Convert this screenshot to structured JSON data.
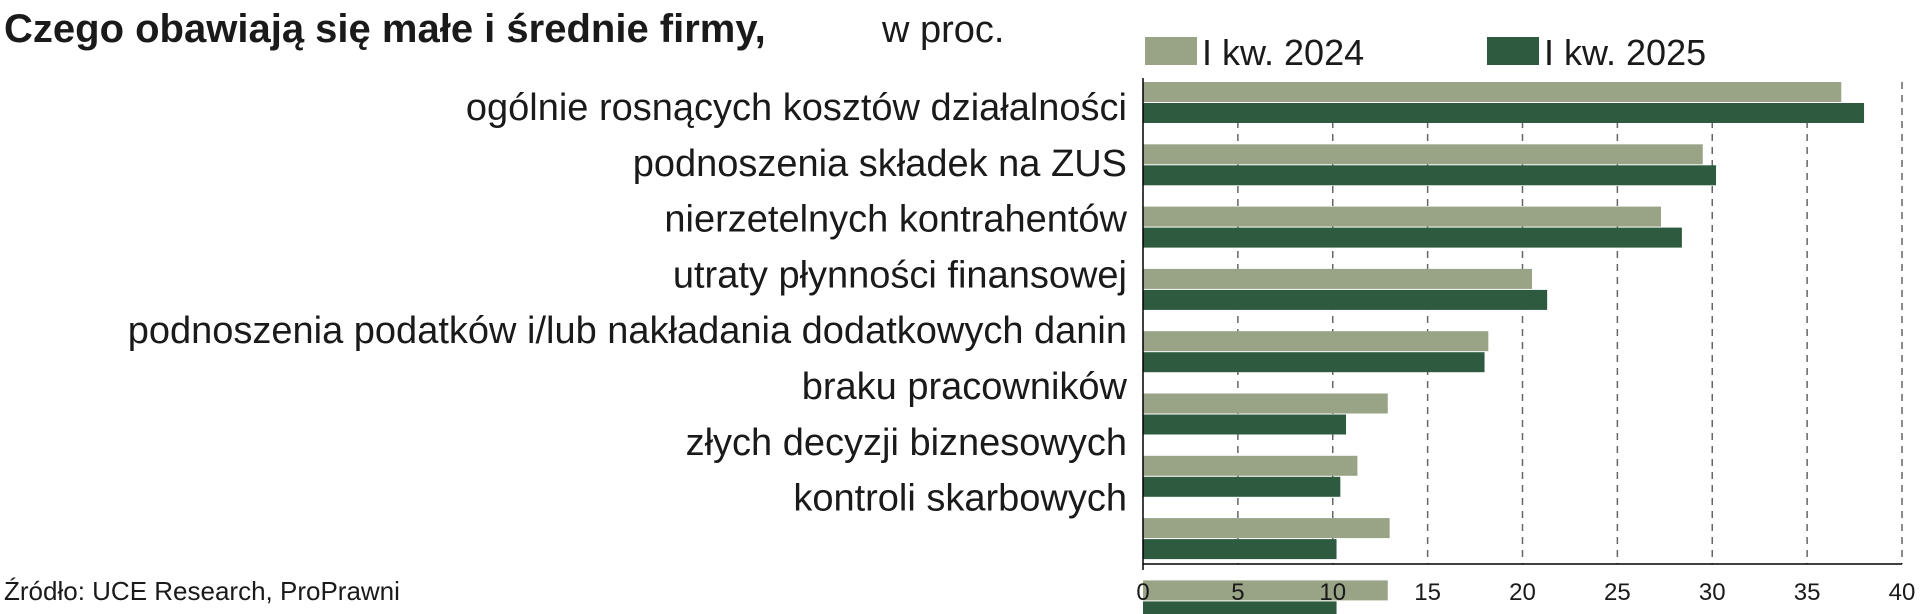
{
  "chart_data": {
    "type": "bar",
    "orientation": "horizontal",
    "title": "Czego obawiają się małe i średnie firmy,",
    "subtitle": "w proc.",
    "source": "Źródło: UCE Research, ProPrawni",
    "categories": [
      "ogólnie rosnących kosztów działalności",
      "podnoszenia składek na ZUS",
      "nierzetelnych kontrahentów",
      "utraty płynności finansowej",
      "podnoszenia podatków i/lub nakładania dodatkowych danin",
      "braku pracowników",
      "złych decyzji biznesowych",
      "kontroli skarbowych",
      ""
    ],
    "series": [
      {
        "name": "I kw. 2024",
        "color": "#99a487",
        "values": [
          36.8,
          29.5,
          27.3,
          20.5,
          18.2,
          12.9,
          11.3,
          13.0,
          12.9
        ]
      },
      {
        "name": "I kw. 2025",
        "color": "#2e5b40",
        "values": [
          38.0,
          30.2,
          28.4,
          21.3,
          18.0,
          10.7,
          10.4,
          10.2,
          10.2
        ]
      }
    ],
    "xlim": [
      0,
      40
    ],
    "xticks": [
      0,
      5,
      10,
      15,
      20,
      25,
      30,
      35,
      40
    ],
    "grid": "vertical dashed",
    "legend_position": "top"
  }
}
